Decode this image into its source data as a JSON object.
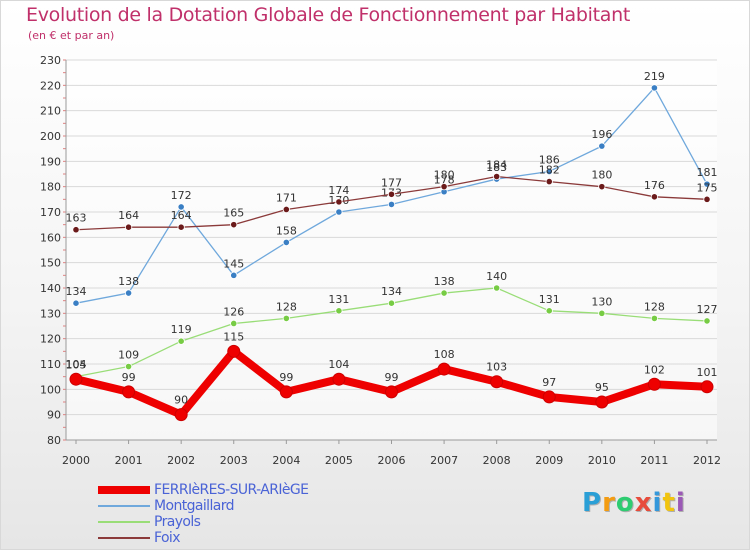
{
  "title": "Evolution de la Dotation Globale de Fonctionnement par Habitant",
  "subtitle": "(en € et par an)",
  "colors": {
    "title": "#c0306a",
    "legend_text": "#4a63d6"
  },
  "chart_data": {
    "type": "line",
    "x": [
      "2000",
      "2001",
      "2002",
      "2003",
      "2004",
      "2005",
      "2006",
      "2007",
      "2008",
      "2009",
      "2010",
      "2011",
      "2012"
    ],
    "ylim": [
      80,
      230
    ],
    "yticks": [
      80,
      90,
      100,
      110,
      120,
      130,
      140,
      150,
      160,
      170,
      180,
      190,
      200,
      210,
      220,
      230
    ],
    "grid": "horizontal",
    "legend_position": "bottom-left",
    "series": [
      {
        "name": "FERRIèRES-SUR-ARIèGE",
        "color": "#ee0000",
        "marker": "#ee0000",
        "values": [
          104,
          99,
          90,
          115,
          99,
          104,
          99,
          108,
          103,
          97,
          95,
          102,
          101
        ],
        "thick": true
      },
      {
        "name": "Montgaillard",
        "color": "#6fa8dc",
        "marker": "#3a7fc4",
        "values": [
          134,
          138,
          172,
          145,
          158,
          170,
          173,
          178,
          183,
          186,
          196,
          219,
          181
        ],
        "thick": false
      },
      {
        "name": "Prayols",
        "color": "#99dd77",
        "marker": "#77cc44",
        "values": [
          105,
          109,
          119,
          126,
          128,
          131,
          134,
          138,
          140,
          131,
          130,
          128,
          127
        ],
        "thick": false
      },
      {
        "name": "Foix",
        "color": "#8b3a3a",
        "marker": "#6b1a1a",
        "values": [
          163,
          164,
          164,
          165,
          171,
          174,
          177,
          180,
          184,
          182,
          180,
          176,
          175
        ],
        "thick": false
      }
    ]
  },
  "logo": {
    "letters": [
      "P",
      "r",
      "o",
      "x",
      "i",
      "t",
      "i"
    ],
    "colors": [
      "#2a9fd6",
      "#f39c12",
      "#2ecc71",
      "#e74c3c",
      "#3498db",
      "#f1c40f",
      "#9b59b6"
    ]
  }
}
